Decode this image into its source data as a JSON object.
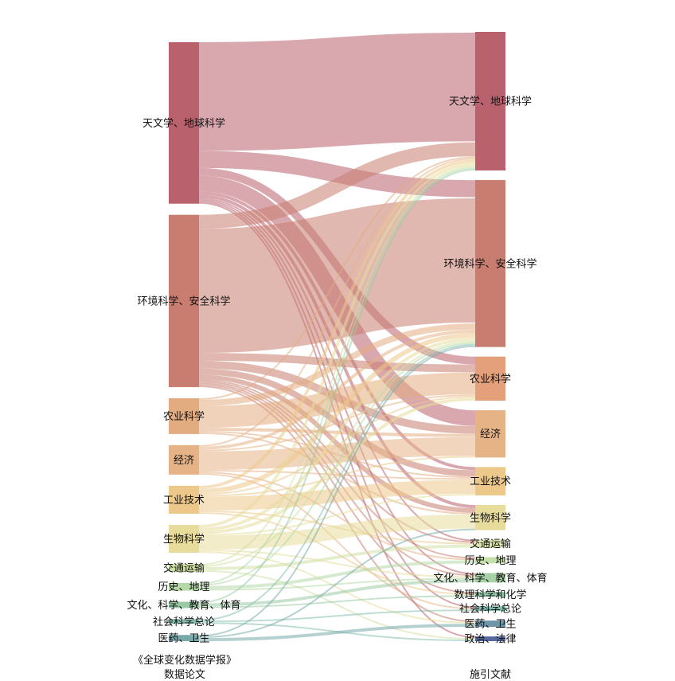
{
  "chart_data": {
    "type": "sankey",
    "left_caption": [
      "《全球变化数据学报》",
      "数据论文"
    ],
    "right_caption": "施引文献",
    "sources": [
      {
        "name": "天文学、地球科学",
        "color": "#b9616d"
      },
      {
        "name": "环境科学、安全科学",
        "color": "#c97d70"
      },
      {
        "name": "农业科学",
        "color": "#e3ab80"
      },
      {
        "name": "经济",
        "color": "#e6b387"
      },
      {
        "name": "工业技术",
        "color": "#ecc98b"
      },
      {
        "name": "生物科学",
        "color": "#e8dc9c"
      },
      {
        "name": "交通运输",
        "color": "#cfe0a4"
      },
      {
        "name": "历史、地理",
        "color": "#b5d8a8"
      },
      {
        "name": "文化、科学、教育、体育",
        "color": "#9acaa4"
      },
      {
        "name": "社会科学总论",
        "color": "#86bfae"
      },
      {
        "name": "医药、卫生",
        "color": "#79a9aa"
      }
    ],
    "targets": [
      {
        "name": "天文学、地球科学",
        "color": "#b9616d"
      },
      {
        "name": "环境科学、安全科学",
        "color": "#c97d70"
      },
      {
        "name": "农业科学",
        "color": "#e3a07a"
      },
      {
        "name": "经济",
        "color": "#e6b387"
      },
      {
        "name": "工业技术",
        "color": "#ecc98b"
      },
      {
        "name": "生物科学",
        "color": "#e8dc9c"
      },
      {
        "name": "交通运输",
        "color": "#dbe6ad"
      },
      {
        "name": "历史、地理",
        "color": "#c6e0ab"
      },
      {
        "name": "文化、科学、教育、体育",
        "color": "#a6d2a6"
      },
      {
        "name": "数理科学和化学",
        "color": "#8fc6a8"
      },
      {
        "name": "社会科学总论",
        "color": "#84bcb0"
      },
      {
        "name": "医药、卫生",
        "color": "#6f95a8"
      },
      {
        "name": "政治、法律",
        "color": "#56699e"
      }
    ],
    "links": [
      [
        0,
        0,
        70
      ],
      [
        0,
        1,
        11
      ],
      [
        0,
        2,
        5
      ],
      [
        0,
        3,
        10
      ],
      [
        0,
        4,
        2
      ],
      [
        0,
        5,
        2
      ],
      [
        0,
        6,
        1
      ],
      [
        0,
        8,
        1
      ],
      [
        0,
        10,
        1
      ],
      [
        0,
        12,
        1
      ],
      [
        1,
        0,
        9
      ],
      [
        1,
        1,
        80
      ],
      [
        1,
        2,
        5
      ],
      [
        1,
        3,
        5
      ],
      [
        1,
        4,
        4
      ],
      [
        1,
        5,
        3
      ],
      [
        1,
        6,
        1
      ],
      [
        1,
        7,
        1
      ],
      [
        1,
        8,
        1
      ],
      [
        1,
        9,
        1
      ],
      [
        1,
        11,
        1
      ],
      [
        2,
        0,
        1
      ],
      [
        2,
        1,
        4
      ],
      [
        2,
        2,
        14
      ],
      [
        2,
        3,
        2
      ],
      [
        2,
        4,
        1
      ],
      [
        2,
        5,
        1
      ],
      [
        3,
        0,
        1
      ],
      [
        3,
        1,
        2
      ],
      [
        3,
        2,
        1
      ],
      [
        3,
        3,
        12
      ],
      [
        3,
        4,
        1
      ],
      [
        3,
        7,
        1
      ],
      [
        3,
        10,
        1
      ],
      [
        4,
        0,
        2
      ],
      [
        4,
        1,
        3
      ],
      [
        4,
        2,
        1
      ],
      [
        4,
        3,
        1
      ],
      [
        4,
        4,
        9
      ],
      [
        4,
        6,
        1
      ],
      [
        4,
        9,
        1
      ],
      [
        5,
        0,
        2
      ],
      [
        5,
        1,
        2
      ],
      [
        5,
        2,
        2
      ],
      [
        5,
        4,
        1
      ],
      [
        5,
        5,
        9
      ],
      [
        5,
        8,
        1
      ],
      [
        5,
        11,
        1
      ],
      [
        6,
        0,
        1
      ],
      [
        6,
        1,
        1
      ],
      [
        6,
        6,
        2
      ],
      [
        6,
        12,
        1
      ],
      [
        7,
        0,
        1
      ],
      [
        7,
        1,
        1
      ],
      [
        7,
        7,
        2
      ],
      [
        7,
        8,
        1
      ],
      [
        8,
        0,
        1
      ],
      [
        8,
        8,
        2
      ],
      [
        8,
        9,
        1
      ],
      [
        9,
        1,
        1
      ],
      [
        9,
        10,
        1
      ],
      [
        9,
        12,
        1
      ],
      [
        10,
        1,
        1
      ],
      [
        10,
        5,
        1
      ],
      [
        10,
        11,
        2
      ]
    ]
  }
}
